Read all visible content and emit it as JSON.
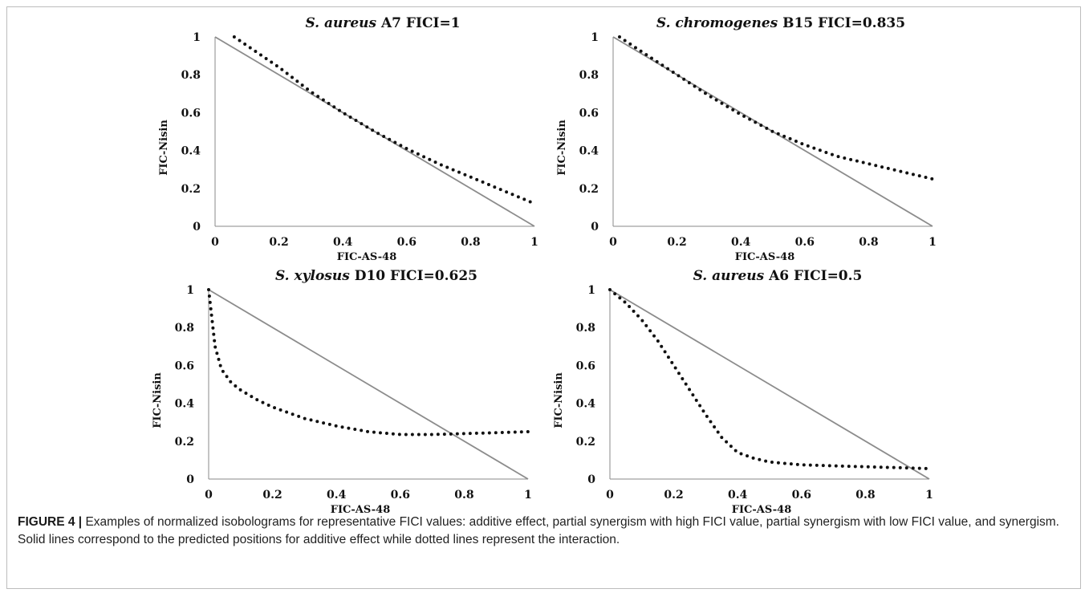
{
  "figure": {
    "caption_label": "FIGURE 4 |",
    "caption_text": "Examples of normalized isobolograms for representative FICI values: additive effect, partial synergism with high FICI value, partial synergism with low FICI value, and synergism. Solid lines correspond to the predicted positions for additive effect while dotted lines represent the interaction."
  },
  "colors": {
    "additive_line": "#8c8c8c",
    "interaction_line": "#111111"
  },
  "chart_data": [
    {
      "type": "line",
      "title_species": "S. aureus",
      "title_rest": " A7  FICI=1",
      "xlabel": "FIC-AS-48",
      "ylabel": "FIC-Nisin",
      "xlim": [
        0,
        1
      ],
      "ylim": [
        0,
        1
      ],
      "xticks": [
        "0",
        "0.2",
        "0.4",
        "0.6",
        "0.8",
        "1"
      ],
      "yticks": [
        "0",
        "0.2",
        "0.4",
        "0.6",
        "0.8",
        "1"
      ],
      "grid": false,
      "series": [
        {
          "style": "solid",
          "x": [
            0,
            1
          ],
          "y": [
            1,
            0
          ]
        },
        {
          "style": "dotted",
          "x": [
            0.06,
            0.2,
            0.3,
            0.4,
            0.5,
            0.6,
            0.7,
            0.8,
            0.9,
            1.0
          ],
          "y": [
            1.0,
            0.84,
            0.71,
            0.6,
            0.5,
            0.41,
            0.33,
            0.26,
            0.19,
            0.12
          ]
        }
      ]
    },
    {
      "type": "line",
      "title_species": "S. chromogenes",
      "title_rest": " B15  FICI=0.835",
      "xlabel": "FIC-AS-48",
      "ylabel": "FIC-Nisin",
      "xlim": [
        0,
        1
      ],
      "ylim": [
        0,
        1
      ],
      "xticks": [
        "0",
        "0.2",
        "0.4",
        "0.6",
        "0.8",
        "1"
      ],
      "yticks": [
        "0",
        "0.2",
        "0.4",
        "0.6",
        "0.8",
        "1"
      ],
      "grid": false,
      "series": [
        {
          "style": "solid",
          "x": [
            0,
            1
          ],
          "y": [
            1,
            0
          ]
        },
        {
          "style": "dotted",
          "x": [
            0.02,
            0.1,
            0.2,
            0.3,
            0.4,
            0.5,
            0.6,
            0.7,
            0.8,
            0.9,
            1.0
          ],
          "y": [
            1.0,
            0.91,
            0.8,
            0.69,
            0.59,
            0.5,
            0.43,
            0.37,
            0.33,
            0.29,
            0.25
          ]
        }
      ]
    },
    {
      "type": "line",
      "title_species": "S. xylosus",
      "title_rest": " D10  FICI=0.625",
      "xlabel": "FIC-AS-48",
      "ylabel": "FIC-Nisin",
      "xlim": [
        0,
        1
      ],
      "ylim": [
        0,
        1
      ],
      "xticks": [
        "0",
        "0.2",
        "0.4",
        "0.6",
        "0.8",
        "1"
      ],
      "yticks": [
        "0",
        "0.2",
        "0.4",
        "0.6",
        "0.8",
        "1"
      ],
      "grid": false,
      "series": [
        {
          "style": "solid",
          "x": [
            0,
            1
          ],
          "y": [
            1,
            0
          ]
        },
        {
          "style": "dotted",
          "x": [
            0.0,
            0.01,
            0.02,
            0.04,
            0.07,
            0.1,
            0.15,
            0.2,
            0.3,
            0.4,
            0.5,
            0.6,
            0.7,
            0.8,
            0.9,
            1.0
          ],
          "y": [
            1.0,
            0.85,
            0.7,
            0.58,
            0.51,
            0.47,
            0.42,
            0.38,
            0.32,
            0.28,
            0.25,
            0.235,
            0.235,
            0.24,
            0.245,
            0.25
          ]
        }
      ]
    },
    {
      "type": "line",
      "title_species": "S. aureus",
      "title_rest": " A6  FICI=0.5",
      "xlabel": "FIC-AS-48",
      "ylabel": "FIC-Nisin",
      "xlim": [
        0,
        1
      ],
      "ylim": [
        0,
        1
      ],
      "xticks": [
        "0",
        "0.2",
        "0.4",
        "0.6",
        "0.8",
        "1"
      ],
      "yticks": [
        "0",
        "0.2",
        "0.4",
        "0.6",
        "0.8",
        "1"
      ],
      "grid": false,
      "series": [
        {
          "style": "solid",
          "x": [
            0,
            1
          ],
          "y": [
            1,
            0
          ]
        },
        {
          "style": "dotted",
          "x": [
            0.0,
            0.05,
            0.1,
            0.15,
            0.2,
            0.25,
            0.3,
            0.35,
            0.4,
            0.45,
            0.5,
            0.6,
            0.7,
            0.8,
            0.9,
            1.0
          ],
          "y": [
            1.0,
            0.93,
            0.84,
            0.73,
            0.6,
            0.47,
            0.34,
            0.22,
            0.14,
            0.11,
            0.09,
            0.075,
            0.07,
            0.065,
            0.06,
            0.055
          ]
        }
      ]
    }
  ]
}
